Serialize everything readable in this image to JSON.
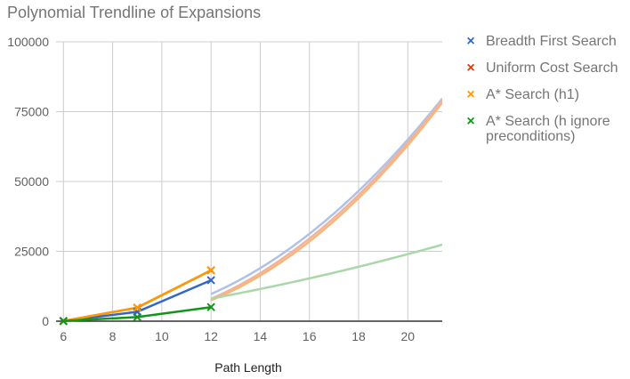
{
  "chart_data": {
    "type": "scatter",
    "title": "Polynomial Trendline of Expansions",
    "xlabel": "Path Length",
    "ylabel": "",
    "xlim": [
      5.7,
      21.4
    ],
    "ylim": [
      0,
      100000
    ],
    "xticks": [
      6,
      8,
      10,
      12,
      14,
      16,
      18,
      20
    ],
    "yticks": [
      0,
      25000,
      50000,
      75000,
      100000
    ],
    "grid": true,
    "legend_position": "right",
    "series": [
      {
        "name": "Breadth First Search",
        "color": "#3366cc",
        "trend_color": "#aec2e8",
        "x": [
          6,
          9,
          12
        ],
        "y": [
          43,
          3343,
          14663
        ],
        "trendline": [
          380,
          -5250,
          18000
        ]
      },
      {
        "name": "Uniform Cost Search",
        "color": "#dc3912",
        "trend_color": "#f0b39e",
        "x": [
          6,
          9,
          12
        ],
        "y": [
          60,
          4850,
          18200
        ],
        "trendline": [
          400,
          -5800,
          20000
        ]
      },
      {
        "name": "A* Search (h1)",
        "color": "#ff9900",
        "trend_color": "#f7b77a",
        "x": [
          6,
          9,
          12
        ],
        "y": [
          60,
          4850,
          18200
        ],
        "trendline": [
          420,
          -6500,
          25000
        ]
      },
      {
        "name": "A* Search (h ignore preconditions)",
        "color": "#109618",
        "trend_color": "#a8d8a8",
        "x": [
          6,
          9,
          12
        ],
        "y": [
          50,
          1450,
          5040
        ],
        "trendline": [
          45,
          550,
          -5000
        ]
      }
    ]
  }
}
